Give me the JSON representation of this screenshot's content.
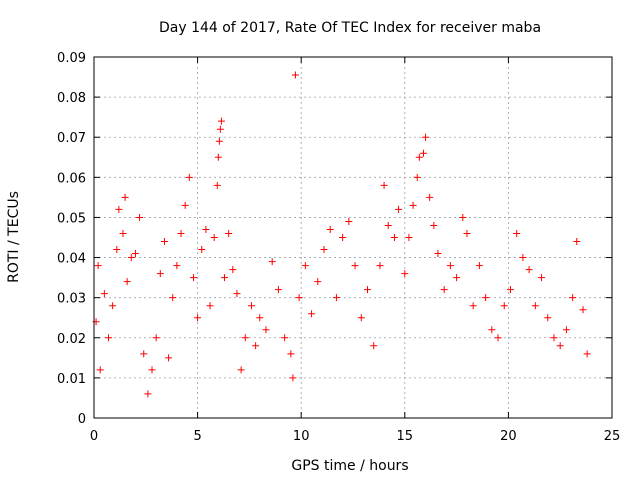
{
  "chart_data": {
    "type": "scatter",
    "title": "Day 144 of 2017, Rate Of TEC Index for receiver maba",
    "xlabel": "GPS time / hours",
    "ylabel": "ROTI / TECUs",
    "xlim": [
      0,
      25
    ],
    "ylim": [
      0,
      0.09
    ],
    "xticks": [
      0,
      5,
      10,
      15,
      20,
      25
    ],
    "yticks": [
      0,
      0.01,
      0.02,
      0.03,
      0.04,
      0.05,
      0.06,
      0.07,
      0.08,
      0.09
    ],
    "xtick_labels": [
      "0",
      "5",
      "10",
      "15",
      "20",
      "25"
    ],
    "ytick_labels": [
      "0",
      "0.01",
      "0.02",
      "0.03",
      "0.04",
      "0.05",
      "0.06",
      "0.07",
      "0.08",
      "0.09"
    ],
    "grid": true,
    "marker": "plus",
    "color": "#ff0000",
    "series": [
      {
        "values": [
          [
            0.1,
            0.024
          ],
          [
            0.2,
            0.038
          ],
          [
            0.3,
            0.012
          ],
          [
            0.5,
            0.031
          ],
          [
            0.7,
            0.02
          ],
          [
            0.9,
            0.028
          ],
          [
            1.1,
            0.042
          ],
          [
            1.2,
            0.052
          ],
          [
            1.4,
            0.046
          ],
          [
            1.5,
            0.055
          ],
          [
            1.6,
            0.034
          ],
          [
            1.8,
            0.04
          ],
          [
            2.0,
            0.041
          ],
          [
            2.2,
            0.05
          ],
          [
            2.4,
            0.016
          ],
          [
            2.6,
            0.006
          ],
          [
            2.8,
            0.012
          ],
          [
            3.0,
            0.02
          ],
          [
            3.2,
            0.036
          ],
          [
            3.4,
            0.044
          ],
          [
            3.6,
            0.015
          ],
          [
            3.8,
            0.03
          ],
          [
            4.0,
            0.038
          ],
          [
            4.2,
            0.046
          ],
          [
            4.4,
            0.053
          ],
          [
            4.6,
            0.06
          ],
          [
            4.8,
            0.035
          ],
          [
            5.0,
            0.025
          ],
          [
            5.2,
            0.042
          ],
          [
            5.4,
            0.047
          ],
          [
            5.6,
            0.028
          ],
          [
            5.8,
            0.045
          ],
          [
            5.95,
            0.058
          ],
          [
            6.0,
            0.065
          ],
          [
            6.05,
            0.069
          ],
          [
            6.1,
            0.072
          ],
          [
            6.15,
            0.074
          ],
          [
            6.3,
            0.035
          ],
          [
            6.5,
            0.046
          ],
          [
            6.7,
            0.037
          ],
          [
            6.9,
            0.031
          ],
          [
            7.1,
            0.012
          ],
          [
            7.3,
            0.02
          ],
          [
            7.6,
            0.028
          ],
          [
            7.8,
            0.018
          ],
          [
            8.0,
            0.025
          ],
          [
            8.3,
            0.022
          ],
          [
            8.6,
            0.039
          ],
          [
            8.9,
            0.032
          ],
          [
            9.2,
            0.02
          ],
          [
            9.5,
            0.016
          ],
          [
            9.6,
            0.01
          ],
          [
            9.72,
            0.0855
          ],
          [
            9.9,
            0.03
          ],
          [
            10.2,
            0.038
          ],
          [
            10.5,
            0.026
          ],
          [
            10.8,
            0.034
          ],
          [
            11.1,
            0.042
          ],
          [
            11.4,
            0.047
          ],
          [
            11.7,
            0.03
          ],
          [
            12.0,
            0.045
          ],
          [
            12.3,
            0.049
          ],
          [
            12.6,
            0.038
          ],
          [
            12.9,
            0.025
          ],
          [
            13.2,
            0.032
          ],
          [
            13.5,
            0.018
          ],
          [
            13.8,
            0.038
          ],
          [
            14.0,
            0.058
          ],
          [
            14.2,
            0.048
          ],
          [
            14.5,
            0.045
          ],
          [
            14.7,
            0.052
          ],
          [
            15.0,
            0.036
          ],
          [
            15.2,
            0.045
          ],
          [
            15.4,
            0.053
          ],
          [
            15.6,
            0.06
          ],
          [
            15.7,
            0.065
          ],
          [
            15.9,
            0.066
          ],
          [
            16.0,
            0.07
          ],
          [
            16.2,
            0.055
          ],
          [
            16.4,
            0.048
          ],
          [
            16.6,
            0.041
          ],
          [
            16.9,
            0.032
          ],
          [
            17.2,
            0.038
          ],
          [
            17.5,
            0.035
          ],
          [
            17.8,
            0.05
          ],
          [
            18.0,
            0.046
          ],
          [
            18.3,
            0.028
          ],
          [
            18.6,
            0.038
          ],
          [
            18.9,
            0.03
          ],
          [
            19.2,
            0.022
          ],
          [
            19.5,
            0.02
          ],
          [
            19.8,
            0.028
          ],
          [
            20.1,
            0.032
          ],
          [
            20.4,
            0.046
          ],
          [
            20.7,
            0.04
          ],
          [
            21.0,
            0.037
          ],
          [
            21.3,
            0.028
          ],
          [
            21.6,
            0.035
          ],
          [
            21.9,
            0.025
          ],
          [
            22.2,
            0.02
          ],
          [
            22.5,
            0.018
          ],
          [
            22.8,
            0.022
          ],
          [
            23.1,
            0.03
          ],
          [
            23.3,
            0.044
          ],
          [
            23.6,
            0.027
          ],
          [
            23.8,
            0.016
          ]
        ]
      }
    ]
  }
}
